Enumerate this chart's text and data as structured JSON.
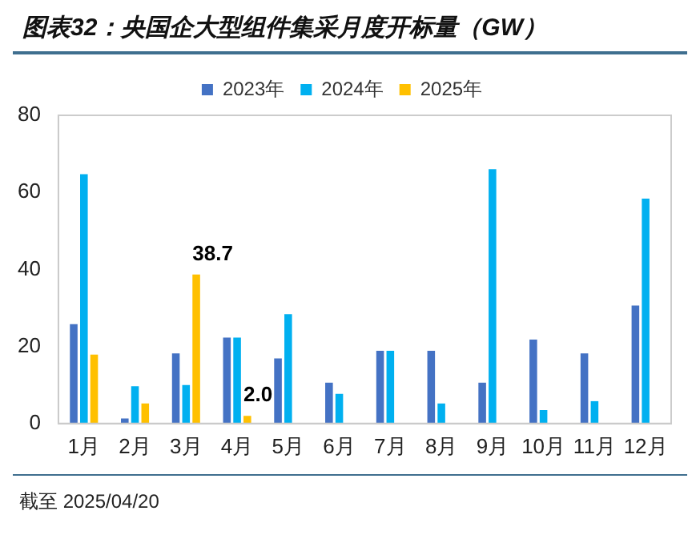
{
  "chart_data": {
    "type": "bar",
    "title": "图表32：央国企大型组件集采月度开标量（GW）",
    "categories": [
      "1月",
      "2月",
      "3月",
      "4月",
      "5月",
      "6月",
      "7月",
      "8月",
      "9月",
      "10月",
      "11月",
      "12月"
    ],
    "series": [
      {
        "name": "2023年",
        "color": "#4472c4",
        "values": [
          25.8,
          1.3,
          18.2,
          22.3,
          16.9,
          10.6,
          18.9,
          18.9,
          10.6,
          21.8,
          18.2,
          30.6
        ]
      },
      {
        "name": "2024年",
        "color": "#00b0f0",
        "values": [
          64.7,
          9.7,
          10.0,
          22.3,
          28.4,
          7.7,
          18.9,
          5.2,
          66.0,
          3.5,
          5.8,
          58.4
        ]
      },
      {
        "name": "2025年",
        "color": "#ffc000",
        "values": [
          17.9,
          5.2,
          38.7,
          2.0,
          null,
          null,
          null,
          null,
          null,
          null,
          null,
          null
        ],
        "value_labels": [
          null,
          null,
          "38.7",
          "2.0",
          null,
          null,
          null,
          null,
          null,
          null,
          null,
          null
        ]
      }
    ],
    "ylim": [
      0,
      80
    ],
    "yticks": [
      0,
      20,
      40,
      60,
      80
    ],
    "grid": false,
    "legend": "top",
    "annotations": [
      "截至 2025/04/20"
    ]
  }
}
